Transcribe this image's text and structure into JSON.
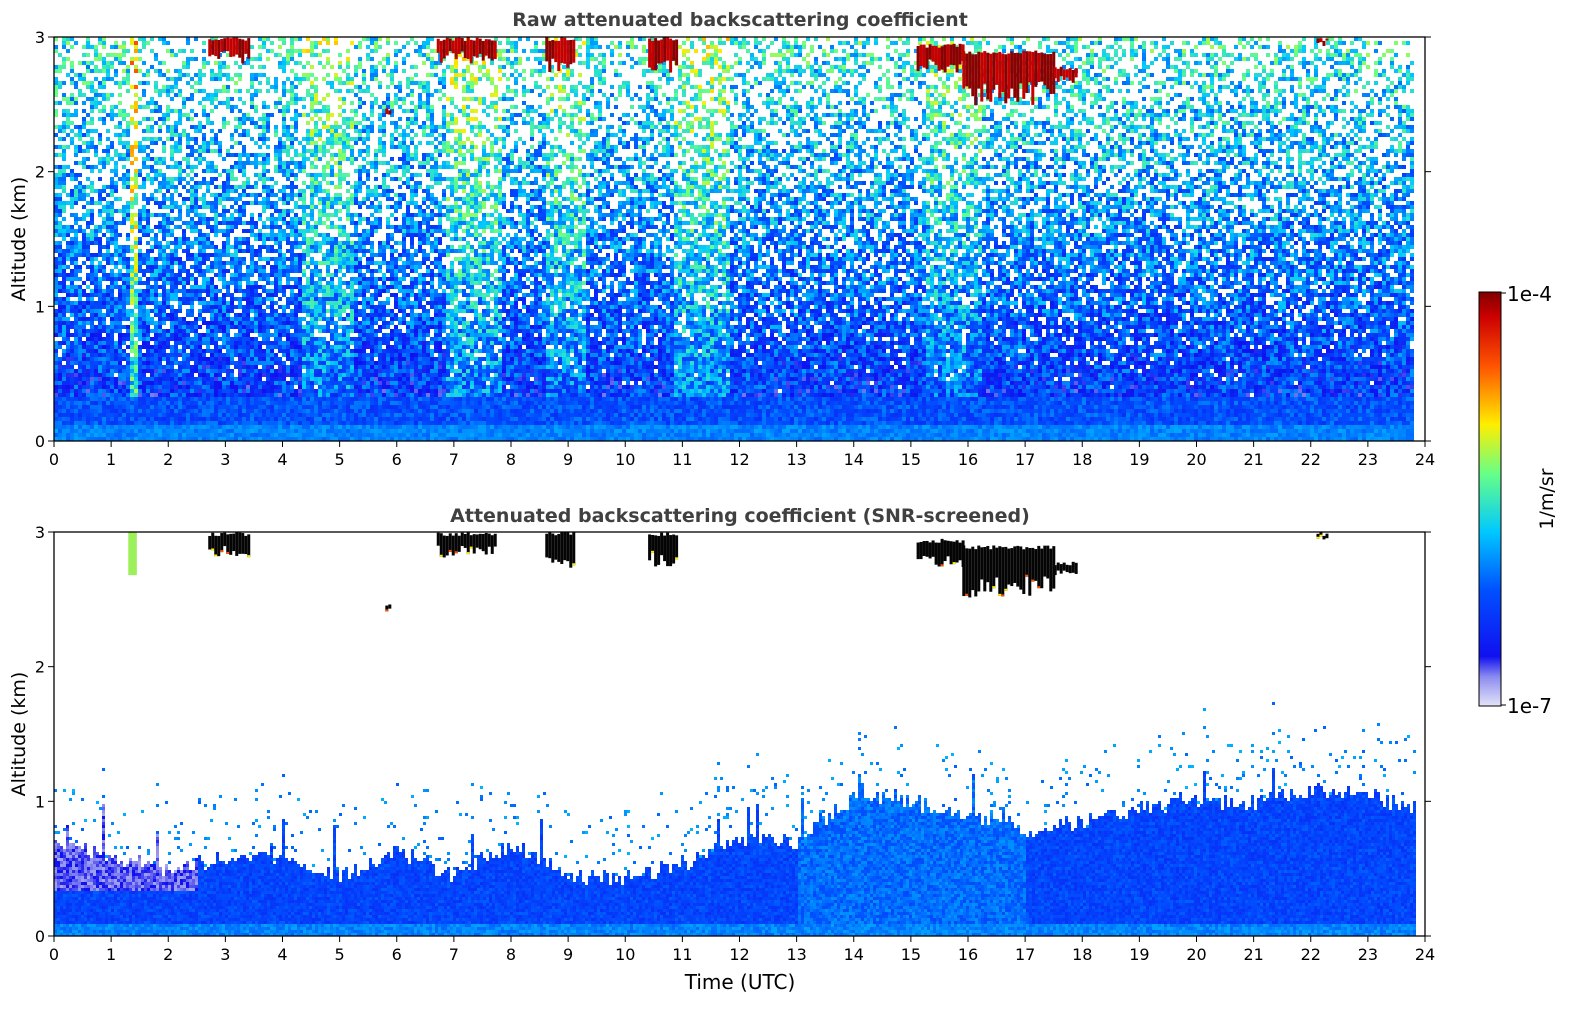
{
  "chart_data": [
    {
      "type": "heatmap",
      "title": "Raw attenuated backscattering coefficient",
      "xlabel": "",
      "ylabel": "Altitude (km)",
      "xlim": [
        0,
        24
      ],
      "ylim": [
        0,
        3
      ],
      "xticks": [
        "0",
        "1",
        "2",
        "3",
        "4",
        "5",
        "6",
        "7",
        "8",
        "9",
        "10",
        "11",
        "12",
        "13",
        "14",
        "15",
        "16",
        "17",
        "18",
        "19",
        "20",
        "21",
        "22",
        "23",
        "24"
      ],
      "yticks": [
        "0",
        "1",
        "2",
        "3"
      ],
      "data_end_hour": 23.8,
      "clouds": [
        {
          "t0": 2.7,
          "t1": 3.4,
          "alt_bottom": 2.72,
          "alt_top": 3.0
        },
        {
          "t0": 5.8,
          "t1": 5.9,
          "alt_bottom": 2.38,
          "alt_top": 2.48
        },
        {
          "t0": 6.7,
          "t1": 7.7,
          "alt_bottom": 2.72,
          "alt_top": 3.0
        },
        {
          "t0": 8.6,
          "t1": 9.1,
          "alt_bottom": 2.6,
          "alt_top": 3.0
        },
        {
          "t0": 10.4,
          "t1": 10.9,
          "alt_bottom": 2.6,
          "alt_top": 3.0
        },
        {
          "t0": 15.1,
          "t1": 15.9,
          "alt_bottom": 2.62,
          "alt_top": 2.95
        },
        {
          "t0": 15.9,
          "t1": 17.5,
          "alt_bottom": 2.3,
          "alt_top": 2.9
        },
        {
          "t0": 17.5,
          "t1": 17.9,
          "alt_bottom": 2.62,
          "alt_top": 2.78
        },
        {
          "t0": 22.1,
          "t1": 22.3,
          "alt_bottom": 2.92,
          "alt_top": 3.0
        }
      ]
    },
    {
      "type": "heatmap",
      "title": "Attenuated backscattering coefficient (SNR-screened)",
      "xlabel": "Time (UTC)",
      "ylabel": "Altitude (km)",
      "xlim": [
        0,
        24
      ],
      "ylim": [
        0,
        3
      ],
      "xticks": [
        "0",
        "1",
        "2",
        "3",
        "4",
        "5",
        "6",
        "7",
        "8",
        "9",
        "10",
        "11",
        "12",
        "13",
        "14",
        "15",
        "16",
        "17",
        "18",
        "19",
        "20",
        "21",
        "22",
        "23",
        "24"
      ],
      "yticks": [
        "0",
        "1",
        "2",
        "3"
      ],
      "data_end_hour": 23.8,
      "boundary_layer_top_km": [
        [
          0,
          0.68
        ],
        [
          1,
          0.6
        ],
        [
          2,
          0.5
        ],
        [
          3,
          0.55
        ],
        [
          4,
          0.6
        ],
        [
          5,
          0.45
        ],
        [
          6,
          0.65
        ],
        [
          7,
          0.45
        ],
        [
          8,
          0.7
        ],
        [
          9,
          0.45
        ],
        [
          10,
          0.45
        ],
        [
          11,
          0.55
        ],
        [
          12,
          0.75
        ],
        [
          13,
          0.7
        ],
        [
          14,
          1.05
        ],
        [
          15,
          1.0
        ],
        [
          16,
          0.9
        ],
        [
          17,
          0.8
        ],
        [
          18,
          0.85
        ],
        [
          19,
          0.95
        ],
        [
          20,
          1.0
        ],
        [
          21,
          1.0
        ],
        [
          22,
          1.1
        ],
        [
          23,
          1.05
        ],
        [
          23.8,
          0.95
        ]
      ]
    }
  ],
  "colorbar": {
    "label": "1/m/sr",
    "max_label": "1e-4",
    "min_label": "1e-7",
    "colormap": [
      "#e4e4f8",
      "#2a2ae8",
      "#0050ff",
      "#00c8ff",
      "#66ff88",
      "#ffee00",
      "#ff5500",
      "#900000"
    ]
  }
}
